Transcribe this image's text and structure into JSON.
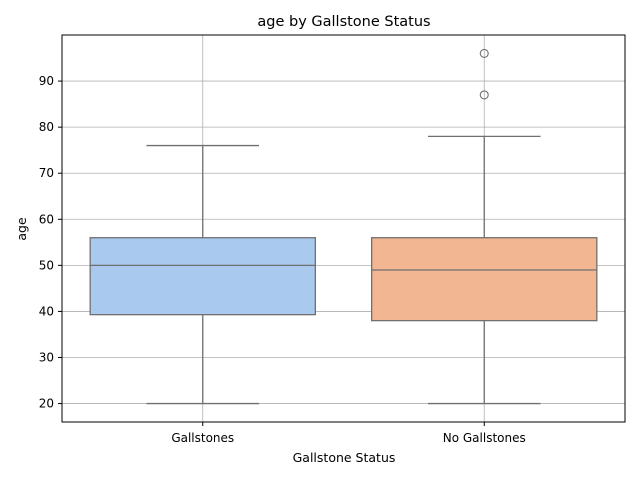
{
  "chart_data": {
    "type": "box",
    "title": "age by Gallstone Status",
    "xlabel": "Gallstone Status",
    "ylabel": "age",
    "ylim": [
      16,
      100
    ],
    "y_ticks": [
      20,
      30,
      40,
      50,
      60,
      70,
      80,
      90
    ],
    "grid": true,
    "categories": [
      "Gallstones",
      "No Gallstones"
    ],
    "boxes": [
      {
        "category": "Gallstones",
        "whisker_low": 20,
        "q1": 39.3,
        "median": 50,
        "q3": 56,
        "whisker_high": 76,
        "outliers": [],
        "color": "#a9c9ee"
      },
      {
        "category": "No Gallstones",
        "whisker_low": 20,
        "q1": 38,
        "median": 49,
        "q3": 56,
        "whisker_high": 78,
        "outliers": [
          87,
          96
        ],
        "color": "#f2b692"
      }
    ],
    "line_color": "#707070",
    "grid_color": "#b0b0b0"
  }
}
